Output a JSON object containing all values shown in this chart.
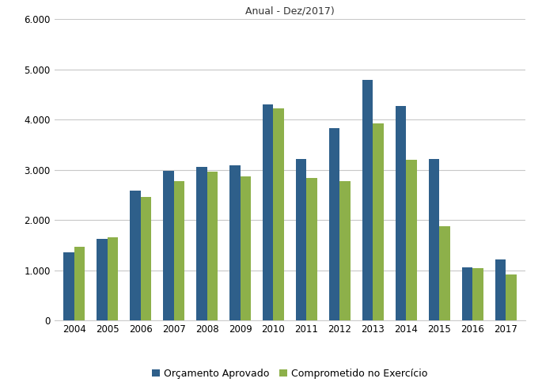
{
  "title": "Anual - Dez/2017)",
  "years": [
    2004,
    2005,
    2006,
    2007,
    2008,
    2009,
    2010,
    2011,
    2012,
    2013,
    2014,
    2015,
    2016,
    2017
  ],
  "orcamento_aprovado": [
    1350,
    1620,
    2580,
    2980,
    3060,
    3090,
    4310,
    3220,
    3830,
    4800,
    4280,
    3220,
    1055,
    1210
  ],
  "comprometido_exercicio": [
    1460,
    1650,
    2460,
    2770,
    2970,
    2870,
    4230,
    2840,
    2770,
    3920,
    3200,
    1880,
    1040,
    910
  ],
  "color_orcamento": "#2E5F8A",
  "color_comprometido": "#8DB04A",
  "ylim": [
    0,
    6000
  ],
  "yticks": [
    0,
    1000,
    2000,
    3000,
    4000,
    5000,
    6000
  ],
  "legend_orcamento": "Orçamento Aprovado",
  "legend_comprometido": "Comprometido no Exercício",
  "bar_width": 0.32,
  "background_color": "#ffffff",
  "grid_color": "#c8c8c8",
  "figwidth": 6.85,
  "figheight": 4.88,
  "dpi": 100
}
